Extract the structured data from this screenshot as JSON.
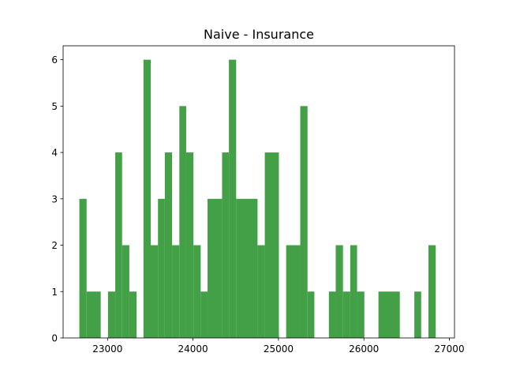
{
  "chart_data": {
    "type": "histogram",
    "title": "Naive - Insurance",
    "xlabel": "",
    "ylabel": "",
    "bar_color": "#43a047",
    "xlim": [
      22480,
      27060
    ],
    "ylim": [
      0,
      6.3
    ],
    "grid": false,
    "legend": "none",
    "x_ticks": [
      23000,
      24000,
      25000,
      26000,
      27000
    ],
    "y_ticks": [
      0,
      1,
      2,
      3,
      4,
      5,
      6
    ],
    "bins": [
      {
        "x0": 22670,
        "x1": 22755,
        "count": 3
      },
      {
        "x0": 22755,
        "x1": 22840,
        "count": 1
      },
      {
        "x0": 22840,
        "x1": 22920,
        "count": 1
      },
      {
        "x0": 23005,
        "x1": 23090,
        "count": 1
      },
      {
        "x0": 23090,
        "x1": 23170,
        "count": 4
      },
      {
        "x0": 23170,
        "x1": 23255,
        "count": 2
      },
      {
        "x0": 23255,
        "x1": 23340,
        "count": 1
      },
      {
        "x0": 23420,
        "x1": 23505,
        "count": 6
      },
      {
        "x0": 23505,
        "x1": 23590,
        "count": 2
      },
      {
        "x0": 23590,
        "x1": 23670,
        "count": 3
      },
      {
        "x0": 23670,
        "x1": 23755,
        "count": 4
      },
      {
        "x0": 23755,
        "x1": 23840,
        "count": 2
      },
      {
        "x0": 23840,
        "x1": 23920,
        "count": 5
      },
      {
        "x0": 23920,
        "x1": 24005,
        "count": 4
      },
      {
        "x0": 24005,
        "x1": 24090,
        "count": 2
      },
      {
        "x0": 24090,
        "x1": 24170,
        "count": 1
      },
      {
        "x0": 24170,
        "x1": 24340,
        "count": 3
      },
      {
        "x0": 24340,
        "x1": 24420,
        "count": 4
      },
      {
        "x0": 24420,
        "x1": 24505,
        "count": 6
      },
      {
        "x0": 24505,
        "x1": 24755,
        "count": 3
      },
      {
        "x0": 24755,
        "x1": 24840,
        "count": 2
      },
      {
        "x0": 24840,
        "x1": 25005,
        "count": 4
      },
      {
        "x0": 25090,
        "x1": 25255,
        "count": 2
      },
      {
        "x0": 25255,
        "x1": 25340,
        "count": 5
      },
      {
        "x0": 25340,
        "x1": 25420,
        "count": 1
      },
      {
        "x0": 25590,
        "x1": 25670,
        "count": 1
      },
      {
        "x0": 25670,
        "x1": 25755,
        "count": 2
      },
      {
        "x0": 25755,
        "x1": 25840,
        "count": 1
      },
      {
        "x0": 25840,
        "x1": 25920,
        "count": 2
      },
      {
        "x0": 25920,
        "x1": 26005,
        "count": 1
      },
      {
        "x0": 26170,
        "x1": 26420,
        "count": 1
      },
      {
        "x0": 26590,
        "x1": 26670,
        "count": 1
      },
      {
        "x0": 26755,
        "x1": 26840,
        "count": 2
      }
    ]
  }
}
